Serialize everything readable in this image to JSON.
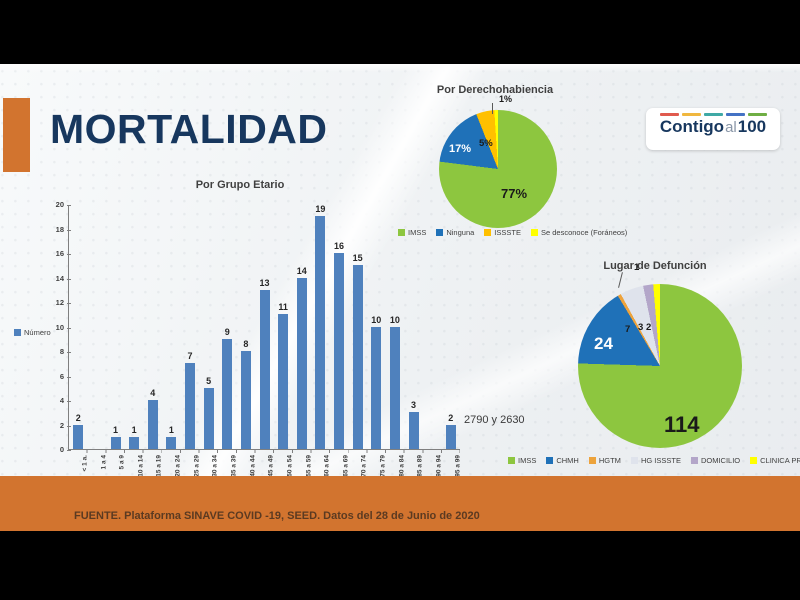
{
  "header": {
    "title": "MORTALIDAD",
    "logo": {
      "part1": "Contigo",
      "part2": "al",
      "part3": "100",
      "dash_colors": [
        "#e05a4e",
        "#f0b73f",
        "#3fa9a5",
        "#4472c4",
        "#6fae44"
      ]
    }
  },
  "footer": {
    "source": "FUENTE. Plataforma SINAVE COVID -19, SEED. Datos del 28 de Junio de 2020"
  },
  "theme": {
    "accent_orange": "#d2742f",
    "title_blue": "#17375e",
    "bar_blue": "#4f81bd",
    "slide_bg": "#eef1f3",
    "letterbox": "#000000"
  },
  "chart_data": [
    {
      "type": "bar",
      "title": "Por Grupo Etario",
      "legend": "Número",
      "categories": [
        "< 1 a.",
        "1 a 4",
        "5 a 9",
        "10 a 14",
        "15 a 19",
        "20 a 24",
        "25 a 29",
        "30 a 34",
        "35 a 39",
        "40 a 44",
        "45 a 49",
        "50 a 54",
        "55 a 59",
        "60 a 64",
        "65 a 69",
        "70 a 74",
        "75 a 79",
        "80 a 84",
        "85 a 89",
        "90 a 94",
        "95 a 99"
      ],
      "values": [
        2,
        0,
        1,
        1,
        4,
        1,
        7,
        5,
        9,
        8,
        13,
        11,
        14,
        19,
        16,
        15,
        10,
        10,
        3,
        0,
        2
      ],
      "bar_color": "#4f81bd",
      "ylim": [
        0,
        20
      ],
      "ytick_step": 2,
      "grid": false,
      "annotation": "2790 y 2630"
    },
    {
      "type": "pie",
      "title": "Por Derechohabiencia",
      "legend_position": "bottom",
      "slices": [
        {
          "label": "IMSS",
          "value": 77,
          "display": "77%",
          "color": "#8dc63f"
        },
        {
          "label": "Ninguna",
          "value": 17,
          "display": "17%",
          "color": "#1f71b8"
        },
        {
          "label": "ISSSTE",
          "value": 5,
          "display": "5%",
          "color": "#ffc000"
        },
        {
          "label": "Se desconoce (Foráneos)",
          "value": 1,
          "display": "1%",
          "color": "#ffff00"
        }
      ]
    },
    {
      "type": "pie",
      "title": "Lugar de Defunción",
      "legend_position": "bottom",
      "slices": [
        {
          "label": "IMSS",
          "value": 114,
          "display": "114",
          "color": "#8dc63f"
        },
        {
          "label": "CHMH",
          "value": 24,
          "display": "24",
          "color": "#1f71b8"
        },
        {
          "label": "HGTM",
          "value": 1,
          "display": "1",
          "color": "#eda33c"
        },
        {
          "label": "HG ISSSTE",
          "value": 7,
          "display": "7",
          "color": "#dfe3ec"
        },
        {
          "label": "DOMICILIO",
          "value": 3,
          "display": "3",
          "color": "#b3a6c9"
        },
        {
          "label": "CLINICA PRIVADA",
          "value": 2,
          "display": "2",
          "color": "#ffff00"
        }
      ]
    }
  ]
}
